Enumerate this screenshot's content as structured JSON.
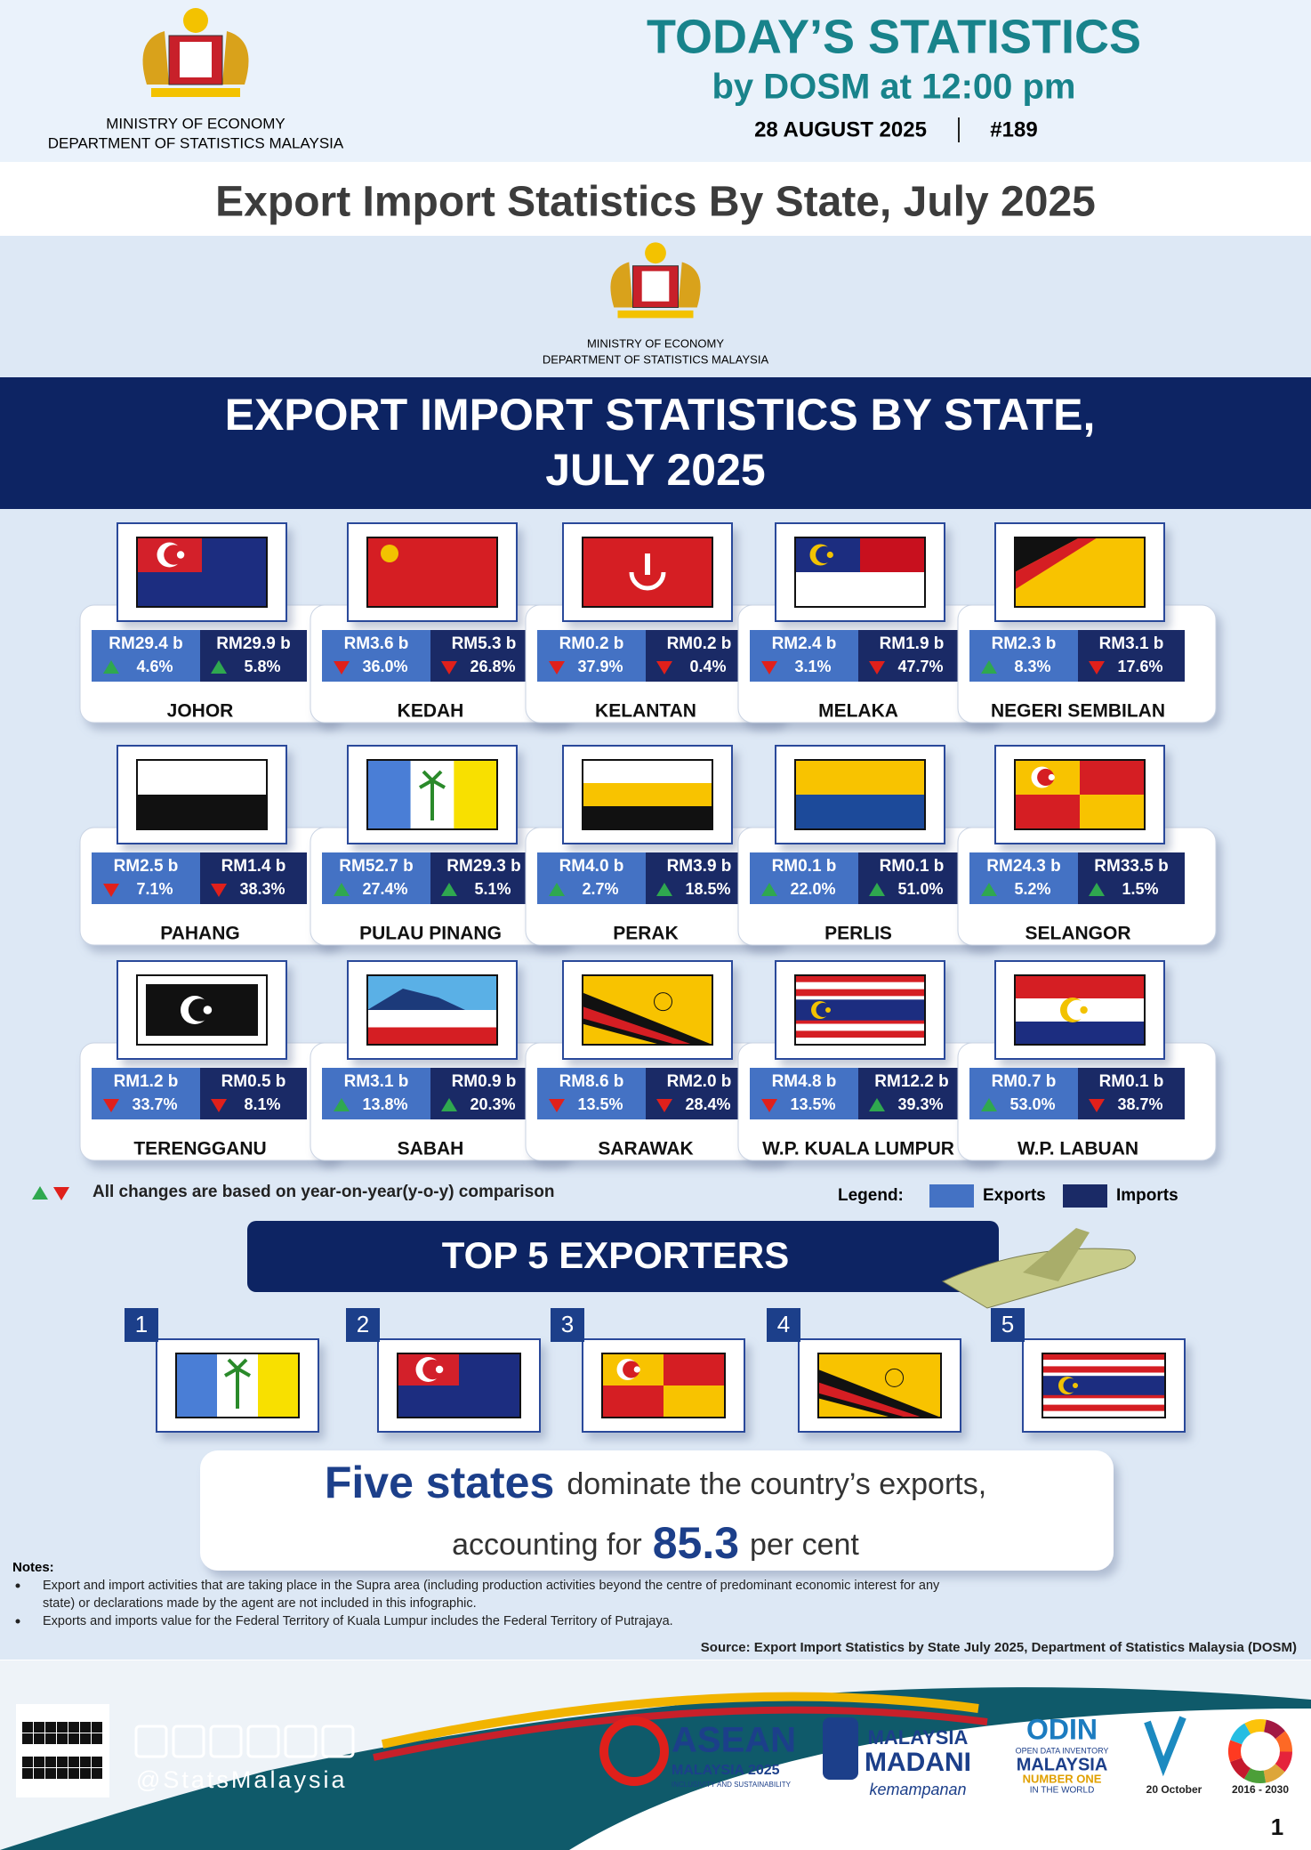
{
  "header": {
    "ministry": "MINISTRY OF ECONOMY",
    "department": "DEPARTMENT OF STATISTICS MALAYSIA",
    "title": "TODAY’S STATISTICS",
    "subtitle": "by DOSM at 12:00 pm",
    "date": "28 AUGUST 2025",
    "issue": "#189"
  },
  "page_title": "Export Import Statistics By State, July 2025",
  "infographic": {
    "ministry": "MINISTRY OF ECONOMY",
    "department": "DEPARTMENT OF STATISTICS MALAYSIA",
    "banner": [
      "EXPORT IMPORT STATISTICS BY STATE,",
      "JULY 2025"
    ],
    "states": [
      {
        "name": "JOHOR",
        "exports": "RM29.4 b",
        "exports_change": "4.6%",
        "exports_dir": "up",
        "imports": "RM29.9 b",
        "imports_change": "5.8%",
        "imports_dir": "up"
      },
      {
        "name": "KEDAH",
        "exports": "RM3.6 b",
        "exports_change": "36.0%",
        "exports_dir": "down",
        "imports": "RM5.3 b",
        "imports_change": "26.8%",
        "imports_dir": "down"
      },
      {
        "name": "KELANTAN",
        "exports": "RM0.2 b",
        "exports_change": "37.9%",
        "exports_dir": "down",
        "imports": "RM0.2 b",
        "imports_change": "0.4%",
        "imports_dir": "down"
      },
      {
        "name": "MELAKA",
        "exports": "RM2.4 b",
        "exports_change": "3.1%",
        "exports_dir": "down",
        "imports": "RM1.9 b",
        "imports_change": "47.7%",
        "imports_dir": "down"
      },
      {
        "name": "NEGERI SEMBILAN",
        "exports": "RM2.3 b",
        "exports_change": "8.3%",
        "exports_dir": "up",
        "imports": "RM3.1 b",
        "imports_change": "17.6%",
        "imports_dir": "down"
      },
      {
        "name": "PAHANG",
        "exports": "RM2.5 b",
        "exports_change": "7.1%",
        "exports_dir": "down",
        "imports": "RM1.4 b",
        "imports_change": "38.3%",
        "imports_dir": "down"
      },
      {
        "name": "PULAU PINANG",
        "exports": "RM52.7 b",
        "exports_change": "27.4%",
        "exports_dir": "up",
        "imports": "RM29.3 b",
        "imports_change": "5.1%",
        "imports_dir": "up"
      },
      {
        "name": "PERAK",
        "exports": "RM4.0 b",
        "exports_change": "2.7%",
        "exports_dir": "up",
        "imports": "RM3.9 b",
        "imports_change": "18.5%",
        "imports_dir": "up"
      },
      {
        "name": "PERLIS",
        "exports": "RM0.1 b",
        "exports_change": "22.0%",
        "exports_dir": "up",
        "imports": "RM0.1 b",
        "imports_change": "51.0%",
        "imports_dir": "up"
      },
      {
        "name": "SELANGOR",
        "exports": "RM24.3 b",
        "exports_change": "5.2%",
        "exports_dir": "up",
        "imports": "RM33.5 b",
        "imports_change": "1.5%",
        "imports_dir": "up"
      },
      {
        "name": "TERENGGANU",
        "exports": "RM1.2 b",
        "exports_change": "33.7%",
        "exports_dir": "down",
        "imports": "RM0.5 b",
        "imports_change": "8.1%",
        "imports_dir": "down"
      },
      {
        "name": "SABAH",
        "exports": "RM3.1 b",
        "exports_change": "13.8%",
        "exports_dir": "up",
        "imports": "RM0.9 b",
        "imports_change": "20.3%",
        "imports_dir": "up"
      },
      {
        "name": "SARAWAK",
        "exports": "RM8.6 b",
        "exports_change": "13.5%",
        "exports_dir": "down",
        "imports": "RM2.0 b",
        "imports_change": "28.4%",
        "imports_dir": "down"
      },
      {
        "name": "W.P. KUALA LUMPUR",
        "exports": "RM4.8 b",
        "exports_change": "13.5%",
        "exports_dir": "down",
        "imports": "RM12.2 b",
        "imports_change": "39.3%",
        "imports_dir": "up"
      },
      {
        "name": "W.P. LABUAN",
        "exports": "RM0.7 b",
        "exports_change": "53.0%",
        "exports_dir": "up",
        "imports": "RM0.1 b",
        "imports_change": "38.7%",
        "imports_dir": "down"
      }
    ],
    "change_note": "All changes are based on year-on-year(y-o-y) comparison",
    "legend": {
      "title": "Legend:",
      "exports": "Exports",
      "imports": "Imports",
      "exports_color": "#4472c4",
      "imports_color": "#1a2a66"
    },
    "top5": {
      "title": "TOP 5 EXPORTERS",
      "ranks": [
        1,
        2,
        3,
        4,
        5
      ]
    },
    "summary": {
      "lead": "Five states",
      "line1": "dominate the country’s exports,",
      "line2": "accounting for",
      "share": "85.3",
      "unit": "per cent"
    }
  },
  "notes": {
    "title": "Notes:",
    "items": [
      "Export and import activities that are taking place in the Supra area (including production activities beyond the centre of predominant economic interest for any state) or declarations made by the agent are not included in this infographic.",
      "Exports and imports value for the Federal Territory of Kuala Lumpur includes the Federal Territory of Putrajaya."
    ],
    "source": "Source: Export Import Statistics by State July 2025, Department of Statistics Malaysia (DOSM)"
  },
  "footer": {
    "handle": "@StatsMalaysia",
    "logos": [
      "ASEAN",
      "MALAYSIA 2025",
      "INCLUSIVITY AND SUSTAINABILITY",
      "MALAYSIA",
      "MADANI",
      "kemampanan",
      "ODIN",
      "OPEN DATA INVENTORY",
      "MALAYSIA",
      "NUMBER ONE",
      "IN THE WORLD",
      "20 October",
      "2016 - 2030"
    ],
    "page": "1"
  }
}
